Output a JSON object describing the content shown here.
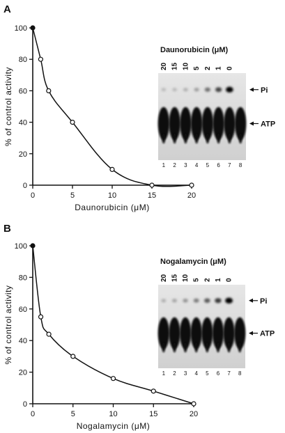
{
  "chart_data": [
    {
      "panel_label": "A",
      "type": "scatter",
      "xlabel": "Daunorubicin (μM)",
      "ylabel": "% of control activity",
      "xlim": [
        0,
        20
      ],
      "ylim": [
        0,
        100
      ],
      "xticks": [
        "0",
        "5",
        "10",
        "15",
        "20"
      ],
      "yticks": [
        "0",
        "20",
        "40",
        "60",
        "80",
        "100"
      ],
      "points": [
        {
          "x": 0,
          "y": 100,
          "filled": true
        },
        {
          "x": 1,
          "y": 80,
          "filled": false
        },
        {
          "x": 2,
          "y": 60,
          "filled": false
        },
        {
          "x": 5,
          "y": 40,
          "filled": false
        },
        {
          "x": 10,
          "y": 10,
          "filled": false
        },
        {
          "x": 15,
          "y": 0,
          "filled": false
        },
        {
          "x": 20,
          "y": 0,
          "filled": false
        }
      ],
      "fit_curve": true,
      "grid": false,
      "inset_gel": {
        "title": "Daunorubicin (μM)",
        "concentrations": [
          "20",
          "15",
          "10",
          "5",
          "2",
          "1",
          "0"
        ],
        "lanes": [
          "1",
          "2",
          "3",
          "4",
          "5",
          "6",
          "7",
          "8"
        ],
        "pi_intensity": [
          0.03,
          0.04,
          0.08,
          0.15,
          0.35,
          0.55,
          0.85,
          0.0
        ],
        "annotations": {
          "pi": "Pi",
          "atp": "ATP"
        }
      }
    },
    {
      "panel_label": "B",
      "type": "scatter",
      "xlabel": "Nogalamycin (μM)",
      "ylabel": "% of control activity",
      "xlim": [
        0,
        20
      ],
      "ylim": [
        0,
        100
      ],
      "xticks": [
        "0",
        "5",
        "10",
        "15",
        "20"
      ],
      "yticks": [
        "0",
        "20",
        "40",
        "60",
        "80",
        "100"
      ],
      "points": [
        {
          "x": 0,
          "y": 100,
          "filled": true
        },
        {
          "x": 1,
          "y": 55,
          "filled": false
        },
        {
          "x": 2,
          "y": 44,
          "filled": false
        },
        {
          "x": 5,
          "y": 30,
          "filled": false
        },
        {
          "x": 10,
          "y": 16,
          "filled": false
        },
        {
          "x": 15,
          "y": 8,
          "filled": false
        },
        {
          "x": 20,
          "y": 0,
          "filled": false
        }
      ],
      "fit_curve": true,
      "grid": false,
      "inset_gel": {
        "title": "Nogalamycin (μM)",
        "concentrations": [
          "20",
          "15",
          "10",
          "5",
          "2",
          "1",
          "0"
        ],
        "lanes": [
          "1",
          "2",
          "3",
          "4",
          "5",
          "6",
          "7",
          "8"
        ],
        "pi_intensity": [
          0.08,
          0.12,
          0.2,
          0.3,
          0.45,
          0.6,
          0.9,
          0.0
        ],
        "annotations": {
          "pi": "Pi",
          "atp": "ATP"
        }
      }
    }
  ]
}
